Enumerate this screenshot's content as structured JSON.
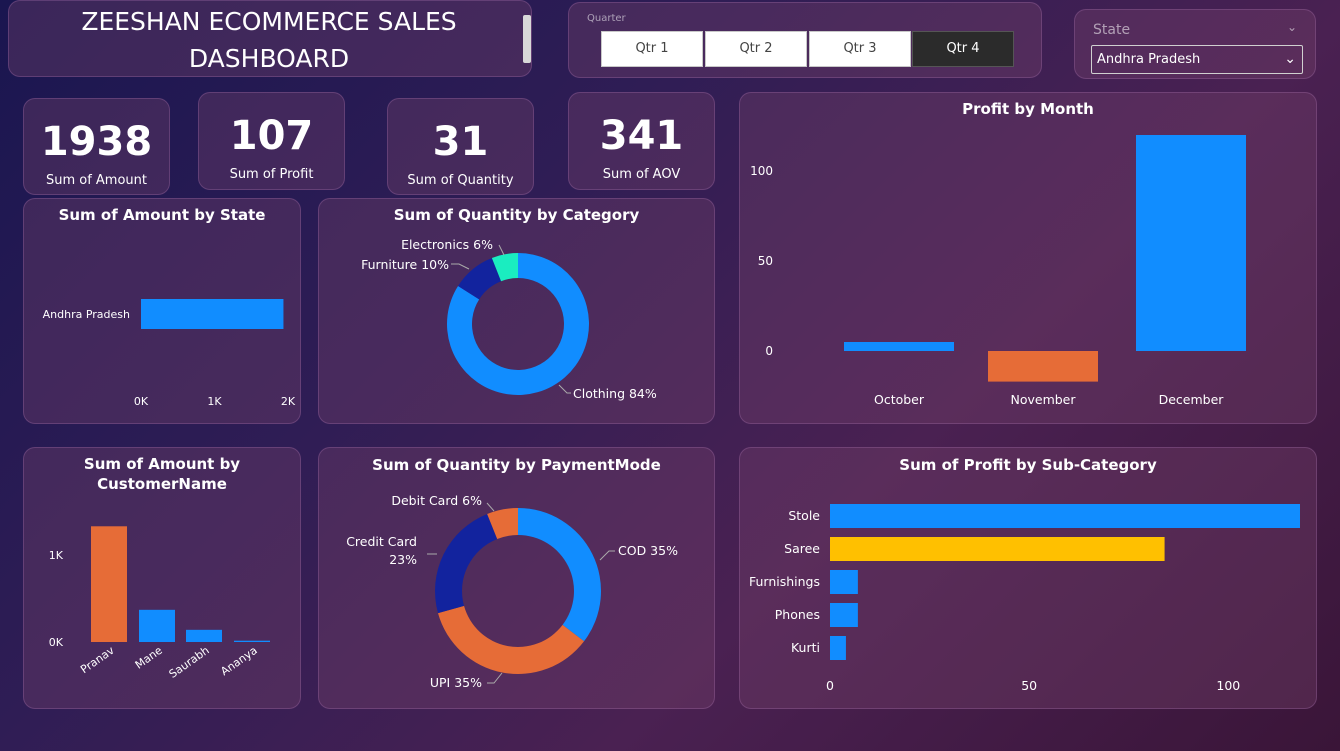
{
  "header": {
    "title_line1": "ZEESHAN ECOMMERCE SALES",
    "title_line2": "DASHBOARD"
  },
  "quarter_slicer": {
    "label": "Quarter",
    "options": [
      "Qtr 1",
      "Qtr 2",
      "Qtr 3",
      "Qtr 4"
    ],
    "selected": "Qtr 4"
  },
  "state_slicer": {
    "label": "State",
    "selected": "Andhra Pradesh"
  },
  "kpis": [
    {
      "value": "1938",
      "label": "Sum of Amount"
    },
    {
      "value": "107",
      "label": "Sum of Profit"
    },
    {
      "value": "31",
      "label": "Sum of Quantity"
    },
    {
      "value": "341",
      "label": "Sum of AOV"
    }
  ],
  "colors": {
    "blue": "#118dff",
    "orange": "#e66c37",
    "navy": "#12239e",
    "teal": "#1aedc0",
    "yellow": "#ffc000"
  },
  "chart_data": [
    {
      "id": "amount_by_state",
      "type": "bar",
      "orientation": "horizontal",
      "title": "Sum of Amount by State",
      "categories": [
        "Andhra Pradesh"
      ],
      "values": [
        1938
      ],
      "xlim": [
        0,
        2000
      ],
      "x_ticks": [
        "0K",
        "1K",
        "2K"
      ]
    },
    {
      "id": "quantity_by_category",
      "type": "pie",
      "donut": true,
      "title": "Sum of Quantity by Category",
      "labels": [
        "Clothing",
        "Furniture",
        "Electronics"
      ],
      "percents": [
        84,
        10,
        6
      ],
      "data_labels": [
        "Clothing 84%",
        "Furniture 10%",
        "Electronics 6%"
      ],
      "colors": [
        "#118dff",
        "#12239e",
        "#1aedc0"
      ]
    },
    {
      "id": "profit_by_month",
      "type": "bar",
      "title": "Profit by Month",
      "categories": [
        "October",
        "November",
        "December"
      ],
      "values": [
        5,
        -17,
        120
      ],
      "colors": [
        "#118dff",
        "#e66c37",
        "#118dff"
      ],
      "ylim": [
        -20,
        120
      ],
      "y_ticks": [
        "0",
        "50",
        "100"
      ]
    },
    {
      "id": "amount_by_customer",
      "type": "bar",
      "title_line1": "Sum of Amount by",
      "title_line2": "CustomerName",
      "categories": [
        "Pranav",
        "Mane",
        "Saurabh",
        "Ananya"
      ],
      "values": [
        1330,
        370,
        140,
        15
      ],
      "colors": [
        "#e66c37",
        "#118dff",
        "#118dff",
        "#118dff"
      ],
      "ylim": [
        0,
        1400
      ],
      "y_ticks": [
        "0K",
        "1K"
      ]
    },
    {
      "id": "quantity_by_paymentmode",
      "type": "pie",
      "donut": true,
      "title": "Sum of Quantity by PaymentMode",
      "labels": [
        "COD",
        "UPI",
        "Credit Card",
        "Debit Card"
      ],
      "percents": [
        35,
        35,
        23,
        6
      ],
      "data_labels": [
        "COD 35%",
        "UPI 35%",
        "Credit Card",
        "23%",
        "Debit Card 6%"
      ],
      "colors": [
        "#118dff",
        "#e66c37",
        "#12239e",
        "#e66c37"
      ]
    },
    {
      "id": "profit_by_subcategory",
      "type": "bar",
      "orientation": "horizontal",
      "title": "Sum of Profit by Sub-Category",
      "categories": [
        "Stole",
        "Saree",
        "Furnishings",
        "Phones",
        "Kurti"
      ],
      "values": [
        118,
        84,
        7,
        7,
        4
      ],
      "colors": [
        "#118dff",
        "#ffc000",
        "#118dff",
        "#118dff",
        "#118dff"
      ],
      "xlim": [
        0,
        118
      ],
      "x_ticks": [
        "0",
        "50",
        "100"
      ]
    }
  ]
}
